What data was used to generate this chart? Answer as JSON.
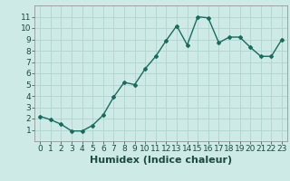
{
  "x": [
    0,
    1,
    2,
    3,
    4,
    5,
    6,
    7,
    8,
    9,
    10,
    11,
    12,
    13,
    14,
    15,
    16,
    17,
    18,
    19,
    20,
    21,
    22,
    23
  ],
  "y": [
    2.2,
    1.9,
    1.5,
    0.9,
    0.9,
    1.4,
    2.3,
    3.9,
    5.2,
    5.0,
    6.4,
    7.5,
    8.9,
    10.2,
    8.5,
    11.0,
    10.9,
    8.7,
    9.2,
    9.2,
    8.3,
    7.5,
    7.5,
    9.0
  ],
  "line_color": "#1a6b5e",
  "marker": "D",
  "marker_size": 2,
  "bg_color": "#ceeae6",
  "grid_color": "#b0d4cf",
  "axis_bg": "#ceeae6",
  "xlabel": "Humidex (Indice chaleur)",
  "ylabel": "",
  "title": "",
  "xlim": [
    -0.5,
    23.5
  ],
  "ylim": [
    0,
    12
  ],
  "yticks": [
    1,
    2,
    3,
    4,
    5,
    6,
    7,
    8,
    9,
    10,
    11
  ],
  "xticks": [
    0,
    1,
    2,
    3,
    4,
    5,
    6,
    7,
    8,
    9,
    10,
    11,
    12,
    13,
    14,
    15,
    16,
    17,
    18,
    19,
    20,
    21,
    22,
    23
  ],
  "tick_labelsize": 6.5,
  "xlabel_fontsize": 8,
  "line_width": 1.0
}
